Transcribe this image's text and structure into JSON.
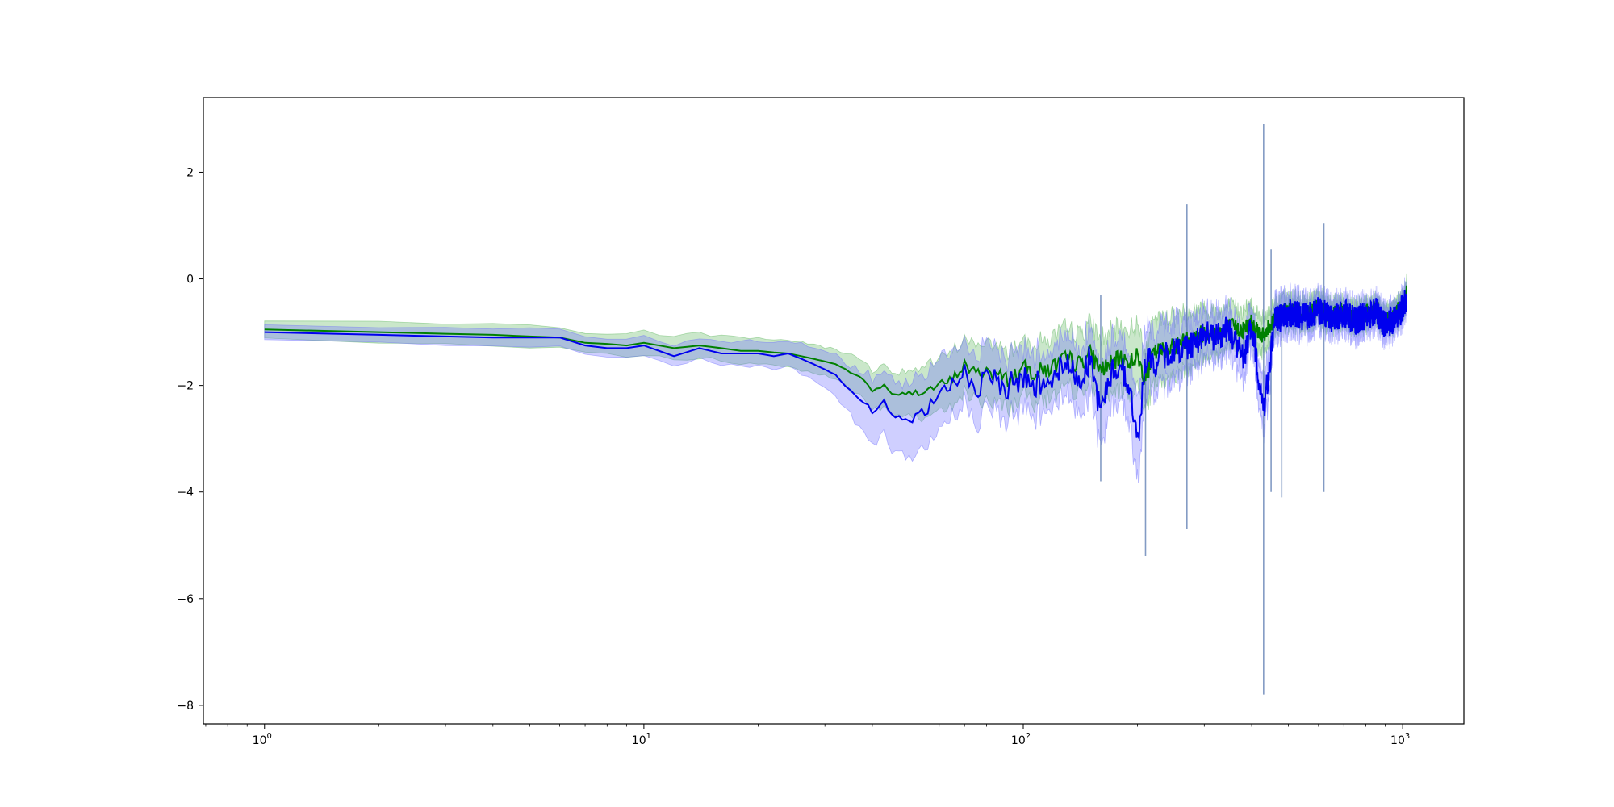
{
  "chart_data": {
    "type": "area",
    "title": "",
    "xlabel": "",
    "ylabel": "",
    "xscale": "log",
    "xlim": [
      0.69,
      1450
    ],
    "ylim": [
      -8.35,
      3.4
    ],
    "grid": false,
    "legend": "none",
    "x_ticks": [
      {
        "value": 1,
        "base": "10",
        "exp": "0"
      },
      {
        "value": 10,
        "base": "10",
        "exp": "1"
      },
      {
        "value": 100,
        "base": "10",
        "exp": "2"
      },
      {
        "value": 1000,
        "base": "10",
        "exp": "3"
      }
    ],
    "y_ticks": [
      {
        "value": 2,
        "label": "2"
      },
      {
        "value": 0,
        "label": "0"
      },
      {
        "value": -2,
        "label": "−2"
      },
      {
        "value": -4,
        "label": "−4"
      },
      {
        "value": -6,
        "label": "−6"
      },
      {
        "value": -8,
        "label": "−8"
      }
    ],
    "colors": {
      "green_line": "#008000",
      "green_band": "#2ca02c",
      "blue_line": "#0000ee",
      "blue_band": "#6b6bff",
      "axes": "#000000"
    },
    "series": [
      {
        "x": [
          1,
          2,
          3,
          4,
          5,
          6,
          7,
          8,
          9,
          10,
          12,
          14,
          16,
          18,
          20,
          22,
          24,
          26,
          28,
          30,
          32,
          34,
          36,
          38,
          40,
          43,
          46,
          50,
          55,
          60,
          65,
          70,
          75,
          80,
          90,
          100,
          110,
          120,
          130,
          140,
          150,
          160,
          170,
          180,
          190,
          200,
          210,
          220,
          240,
          260,
          280,
          300,
          320,
          350,
          380,
          400,
          430,
          460,
          500,
          550,
          600,
          650,
          700,
          750,
          800,
          850,
          900,
          950,
          1000,
          1024
        ],
        "y": [
          -0.95,
          -1.0,
          -1.03,
          -1.05,
          -1.08,
          -1.1,
          -1.2,
          -1.22,
          -1.25,
          -1.2,
          -1.3,
          -1.25,
          -1.3,
          -1.35,
          -1.35,
          -1.38,
          -1.4,
          -1.45,
          -1.5,
          -1.55,
          -1.6,
          -1.7,
          -1.8,
          -1.9,
          -2.1,
          -2.0,
          -2.2,
          -2.15,
          -2.1,
          -2.0,
          -1.9,
          -1.6,
          -1.8,
          -1.7,
          -1.9,
          -1.7,
          -1.75,
          -1.65,
          -1.5,
          -1.6,
          -1.4,
          -1.7,
          -1.6,
          -1.5,
          -1.55,
          -1.45,
          -1.9,
          -1.4,
          -1.3,
          -1.2,
          -1.1,
          -1.0,
          -1.05,
          -0.9,
          -0.95,
          -0.8,
          -1.1,
          -0.7,
          -0.6,
          -0.65,
          -0.55,
          -0.7,
          -0.6,
          -0.75,
          -0.65,
          -0.6,
          -0.8,
          -0.7,
          -0.5,
          -0.3
        ],
        "band": [
          0.17,
          0.18,
          0.18,
          0.19,
          0.19,
          0.2,
          0.2,
          0.21,
          0.21,
          0.22,
          0.22,
          0.23,
          0.23,
          0.24,
          0.24,
          0.25,
          0.25,
          0.26,
          0.27,
          0.28,
          0.3,
          0.32,
          0.34,
          0.36,
          0.38,
          0.4,
          0.42,
          0.44,
          0.46,
          0.48,
          0.5,
          0.52,
          0.52,
          0.53,
          0.54,
          0.55,
          0.55,
          0.56,
          0.56,
          0.57,
          0.57,
          0.58,
          0.58,
          0.58,
          0.58,
          0.6,
          0.6,
          0.6,
          0.58,
          0.55,
          0.5,
          0.45,
          0.42,
          0.38,
          0.35,
          0.32,
          0.3,
          0.28,
          0.26,
          0.25,
          0.24,
          0.23,
          0.22,
          0.22,
          0.21,
          0.2,
          0.2,
          0.2,
          0.2,
          0.2
        ]
      },
      {
        "x": [
          1,
          2,
          3,
          4,
          5,
          6,
          7,
          8,
          9,
          10,
          12,
          14,
          16,
          18,
          20,
          22,
          24,
          26,
          28,
          30,
          32,
          34,
          36,
          38,
          40,
          43,
          46,
          50,
          55,
          60,
          65,
          70,
          75,
          80,
          90,
          100,
          110,
          120,
          130,
          140,
          150,
          160,
          170,
          180,
          190,
          200,
          210,
          220,
          240,
          260,
          280,
          300,
          320,
          350,
          380,
          400,
          430,
          460,
          500,
          550,
          600,
          650,
          700,
          750,
          800,
          850,
          900,
          950,
          1000,
          1024
        ],
        "y": [
          -1.0,
          -1.05,
          -1.08,
          -1.1,
          -1.1,
          -1.1,
          -1.25,
          -1.3,
          -1.3,
          -1.25,
          -1.45,
          -1.3,
          -1.4,
          -1.4,
          -1.4,
          -1.45,
          -1.4,
          -1.5,
          -1.6,
          -1.7,
          -1.8,
          -2.0,
          -2.2,
          -2.3,
          -2.5,
          -2.3,
          -2.6,
          -2.7,
          -2.5,
          -2.2,
          -2.0,
          -1.7,
          -2.1,
          -1.9,
          -2.0,
          -1.9,
          -1.95,
          -1.8,
          -1.6,
          -1.9,
          -1.5,
          -2.5,
          -1.8,
          -1.6,
          -2.0,
          -3.1,
          -1.5,
          -1.6,
          -1.4,
          -1.3,
          -1.2,
          -1.05,
          -1.1,
          -0.95,
          -1.5,
          -0.9,
          -2.5,
          -0.8,
          -0.65,
          -0.7,
          -0.6,
          -0.75,
          -0.65,
          -0.8,
          -0.7,
          -0.6,
          -0.85,
          -0.75,
          -0.55,
          -0.3
        ],
        "band": [
          0.15,
          0.15,
          0.16,
          0.16,
          0.17,
          0.17,
          0.18,
          0.18,
          0.19,
          0.19,
          0.2,
          0.2,
          0.22,
          0.22,
          0.24,
          0.25,
          0.26,
          0.28,
          0.3,
          0.35,
          0.4,
          0.45,
          0.5,
          0.55,
          0.6,
          0.62,
          0.65,
          0.7,
          0.68,
          0.65,
          0.62,
          0.6,
          0.6,
          0.58,
          0.58,
          0.56,
          0.56,
          0.56,
          0.55,
          0.6,
          0.6,
          0.7,
          0.65,
          0.6,
          0.62,
          0.8,
          0.6,
          0.58,
          0.55,
          0.5,
          0.45,
          0.42,
          0.4,
          0.38,
          0.45,
          0.35,
          0.5,
          0.32,
          0.3,
          0.28,
          0.27,
          0.26,
          0.25,
          0.25,
          0.24,
          0.23,
          0.23,
          0.22,
          0.22,
          0.22
        ],
        "spikes": [
          {
            "x": 160,
            "lo": -3.8,
            "hi": -0.3
          },
          {
            "x": 210,
            "lo": -5.2,
            "hi": -1.4
          },
          {
            "x": 270,
            "lo": -4.7,
            "hi": 1.4
          },
          {
            "x": 430,
            "lo": -7.8,
            "hi": 2.9
          },
          {
            "x": 450,
            "lo": -4.0,
            "hi": 0.55
          },
          {
            "x": 480,
            "lo": -4.1,
            "hi": -1.0
          },
          {
            "x": 620,
            "lo": -4.0,
            "hi": 1.05
          }
        ]
      }
    ]
  }
}
